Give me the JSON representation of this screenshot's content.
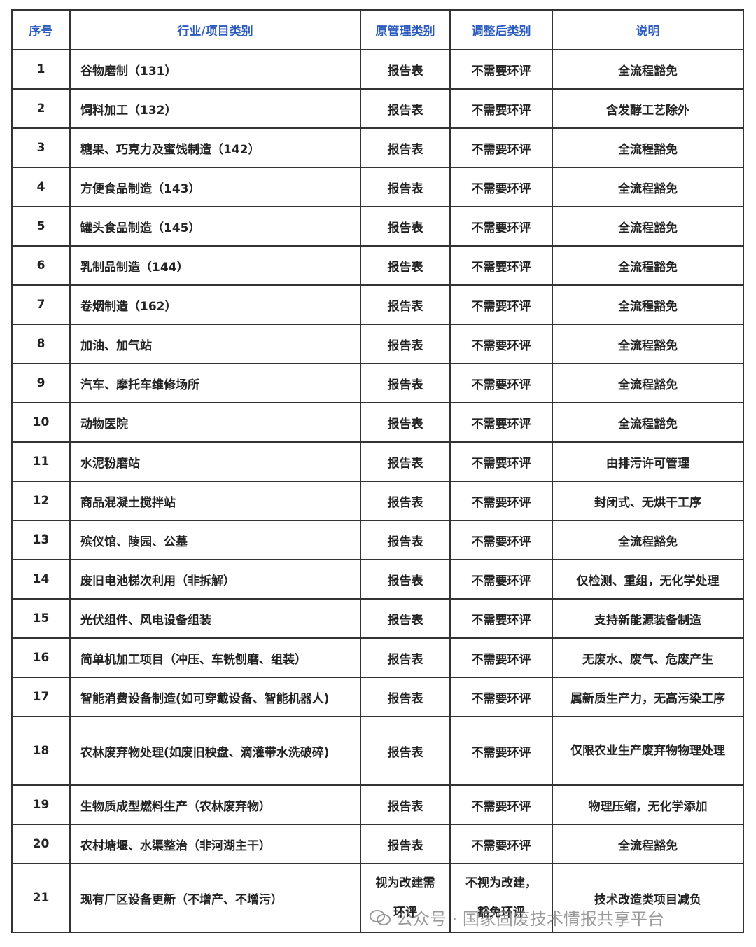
{
  "table": {
    "header": [
      "序号",
      "行业/项目类别",
      "原管理类别",
      "调整后类别",
      "说明"
    ],
    "rows": [
      [
        "1",
        "谷物磨制（131）",
        "报告表",
        "不需要环评",
        "全流程豁免"
      ],
      [
        "2",
        "饲料加工（132）",
        "报告表",
        "不需要环评",
        "含发酵工艺除外"
      ],
      [
        "3",
        "糖果、巧克力及蜜饯制造（142）",
        "报告表",
        "不需要环评",
        "全流程豁免"
      ],
      [
        "4",
        "方便食品制造（143）",
        "报告表",
        "不需要环评",
        "全流程豁免"
      ],
      [
        "5",
        "罐头食品制造（145）",
        "报告表",
        "不需要环评",
        "全流程豁免"
      ],
      [
        "6",
        "乳制品制造（144）",
        "报告表",
        "不需要环评",
        "全流程豁免"
      ],
      [
        "7",
        "卷烟制造（162）",
        "报告表",
        "不需要环评",
        "全流程豁免"
      ],
      [
        "8",
        "加油、加气站",
        "报告表",
        "不需要环评",
        "全流程豁免"
      ],
      [
        "9",
        "汽车、摩托车维修场所",
        "报告表",
        "不需要环评",
        "全流程豁免"
      ],
      [
        "10",
        "动物医院",
        "报告表",
        "不需要环评",
        "全流程豁免"
      ],
      [
        "11",
        "水泥粉磨站",
        "报告表",
        "不需要环评",
        "由排污许可管理"
      ],
      [
        "12",
        "商品混凝土搅拌站",
        "报告表",
        "不需要环评",
        "封闭式、无烘干工序"
      ],
      [
        "13",
        "殡仪馆、陵园、公墓",
        "报告表",
        "不需要环评",
        "全流程豁免"
      ],
      [
        "14",
        "废旧电池梯次利用（非拆解）",
        "报告表",
        "不需要环评",
        "仅检测、重组，无化学处理"
      ],
      [
        "15",
        "光伏组件、风电设备组装",
        "报告表",
        "不需要环评",
        "支持新能源装备制造"
      ],
      [
        "16",
        "简单机加工项目（冲压、车铣刨磨、组装）",
        "报告表",
        "不需要环评",
        "无废水、废气、危废产生"
      ],
      [
        "17",
        "智能消费设备制造(如可穿戴设备、智能机器人)",
        "报告表",
        "不需要环评",
        "属新质生产力，无高污染工序"
      ],
      [
        "18",
        "农林废弃物处理(如废旧秧盘、滴灌带水洗破碎)",
        "报告表",
        "不需要环评",
        "仅限农业生产废弃物物理处理"
      ],
      [
        "19",
        "生物质成型燃料生产（农林废弃物）",
        "报告表",
        "不需要环评",
        "物理压缩，无化学添加"
      ],
      [
        "20",
        "农村塘堰、水渠整治（非河湖主干）",
        "报告表",
        "不需要环评",
        "全流程豁免"
      ],
      [
        "21",
        "现有厂区设备更新（不增产、不增污）",
        "视为改建需环评",
        "不视为改建，豁免环评",
        "技术改造类项目减负"
      ]
    ]
  },
  "watermark": "公众号 · 国家固废技术情报共享平台"
}
